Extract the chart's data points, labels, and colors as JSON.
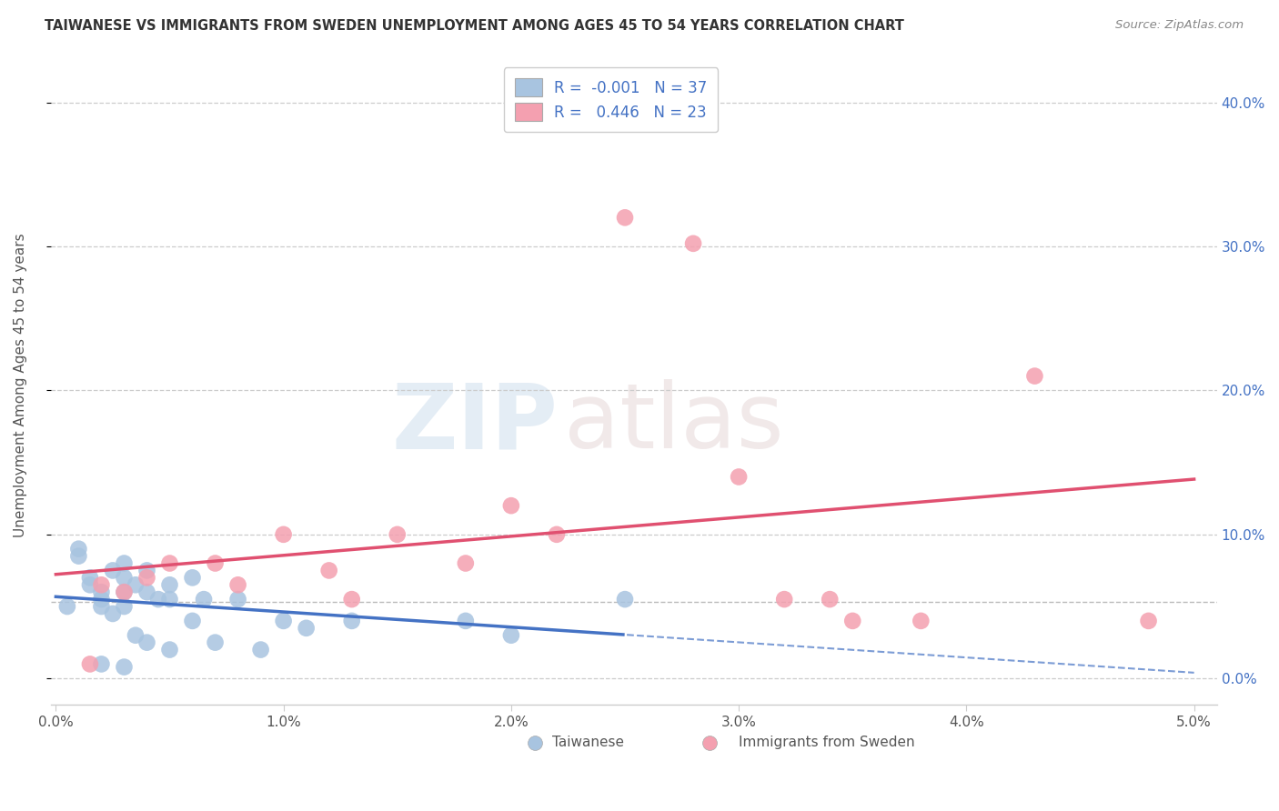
{
  "title": "TAIWANESE VS IMMIGRANTS FROM SWEDEN UNEMPLOYMENT AMONG AGES 45 TO 54 YEARS CORRELATION CHART",
  "source": "Source: ZipAtlas.com",
  "ylabel": "Unemployment Among Ages 45 to 54 years",
  "xlim": [
    -0.0002,
    0.051
  ],
  "ylim": [
    -0.018,
    0.425
  ],
  "xticks": [
    0.0,
    0.01,
    0.02,
    0.03,
    0.04,
    0.05
  ],
  "yticks": [
    0.0,
    0.1,
    0.2,
    0.3,
    0.4
  ],
  "ytick_labels": [
    "0.0%",
    "10.0%",
    "20.0%",
    "30.0%",
    "40.0%"
  ],
  "xtick_labels": [
    "0.0%",
    "1.0%",
    "2.0%",
    "3.0%",
    "4.0%",
    "5.0%"
  ],
  "taiwanese_color": "#a8c4e0",
  "swedish_color": "#f4a0b0",
  "taiwanese_line_color": "#4472c4",
  "swedish_line_color": "#e05070",
  "legend_label_1": "Taiwanese",
  "legend_label_2": "Immigrants from Sweden",
  "r1": -0.001,
  "n1": 37,
  "r2": 0.446,
  "n2": 23,
  "watermark_zip": "ZIP",
  "watermark_atlas": "atlas",
  "taiwanese_x": [
    0.0005,
    0.001,
    0.001,
    0.0015,
    0.0015,
    0.002,
    0.002,
    0.002,
    0.002,
    0.0025,
    0.0025,
    0.003,
    0.003,
    0.003,
    0.003,
    0.003,
    0.0035,
    0.0035,
    0.004,
    0.004,
    0.004,
    0.0045,
    0.005,
    0.005,
    0.005,
    0.006,
    0.006,
    0.0065,
    0.007,
    0.008,
    0.009,
    0.01,
    0.011,
    0.013,
    0.018,
    0.02,
    0.025
  ],
  "taiwanese_y": [
    0.05,
    0.09,
    0.085,
    0.07,
    0.065,
    0.06,
    0.055,
    0.05,
    0.01,
    0.075,
    0.045,
    0.08,
    0.07,
    0.06,
    0.05,
    0.008,
    0.065,
    0.03,
    0.075,
    0.06,
    0.025,
    0.055,
    0.065,
    0.055,
    0.02,
    0.07,
    0.04,
    0.055,
    0.025,
    0.055,
    0.02,
    0.04,
    0.035,
    0.04,
    0.04,
    0.03,
    0.055
  ],
  "swedish_x": [
    0.0015,
    0.002,
    0.003,
    0.004,
    0.005,
    0.007,
    0.008,
    0.01,
    0.012,
    0.013,
    0.015,
    0.018,
    0.02,
    0.022,
    0.025,
    0.028,
    0.03,
    0.032,
    0.034,
    0.035,
    0.038,
    0.043,
    0.048
  ],
  "swedish_y": [
    0.01,
    0.065,
    0.06,
    0.07,
    0.08,
    0.08,
    0.065,
    0.1,
    0.075,
    0.055,
    0.1,
    0.08,
    0.12,
    0.1,
    0.32,
    0.302,
    0.14,
    0.055,
    0.055,
    0.04,
    0.04,
    0.21,
    0.04
  ],
  "ref_line_y": 0.053,
  "tw_line_end_solid": 0.025,
  "tw_line_start": 0.0,
  "tw_line_end": 0.05
}
